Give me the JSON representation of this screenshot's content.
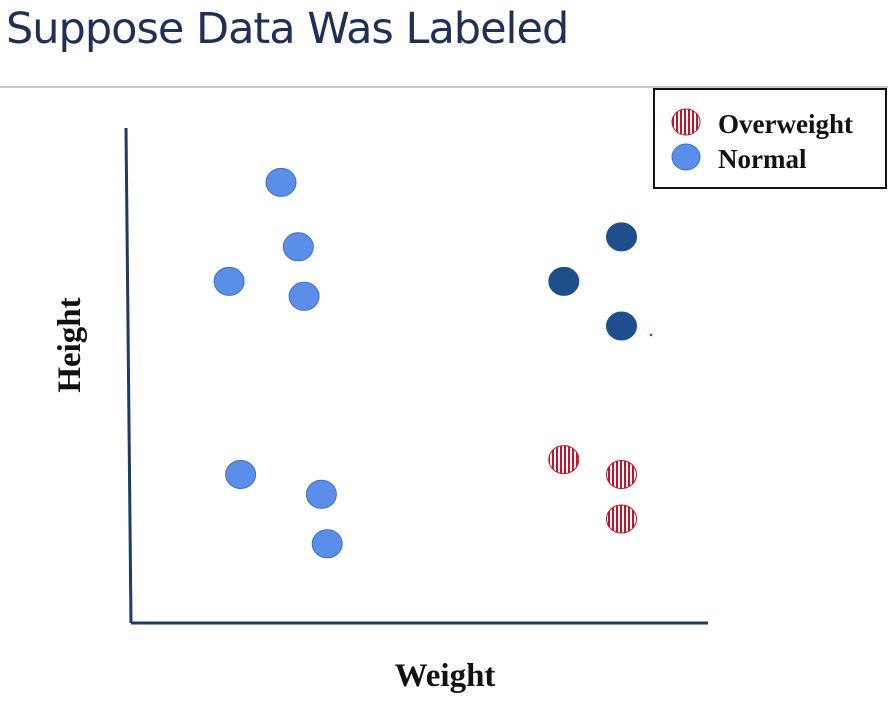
{
  "slide": {
    "title": "Suppose Data Was Labeled"
  },
  "chart_data": {
    "type": "scatter",
    "title": "",
    "xlabel": "Weight",
    "ylabel": "Height",
    "xlim": [
      0,
      10
    ],
    "ylim": [
      0,
      10
    ],
    "grid": false,
    "ticks": false,
    "legend": {
      "placement": "top-right",
      "entries": [
        {
          "name": "Overweight",
          "pattern": "striped"
        },
        {
          "name": "Normal",
          "pattern": "solid"
        }
      ]
    },
    "colors": {
      "axis": "#1f3a68",
      "normal": "#5b8ee8",
      "normal_outline": "#3d6fc9",
      "dark": "#1f4e8c",
      "stripe_red": "#c0142a",
      "stripe_white": "#ffffff"
    },
    "series": [
      {
        "name": "Normal",
        "style": "normal",
        "points": [
          [
            2.6,
            8.9
          ],
          [
            2.9,
            7.6
          ],
          [
            1.7,
            6.9
          ],
          [
            3.0,
            6.6
          ],
          [
            1.9,
            3.0
          ],
          [
            3.3,
            2.6
          ],
          [
            3.4,
            1.6
          ]
        ]
      },
      {
        "name": "",
        "style": "dark",
        "points": [
          [
            8.5,
            7.8
          ],
          [
            7.5,
            6.9
          ],
          [
            8.5,
            6.0
          ]
        ]
      },
      {
        "name": "Overweight",
        "style": "overweight",
        "points": [
          [
            7.5,
            3.3
          ],
          [
            8.5,
            3.0
          ],
          [
            8.5,
            2.1
          ]
        ]
      }
    ]
  }
}
